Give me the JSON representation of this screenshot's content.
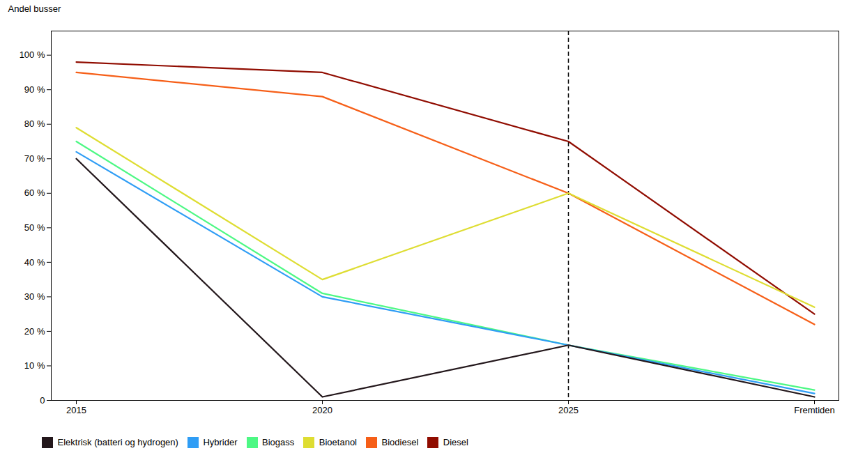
{
  "chart_data": {
    "type": "line",
    "ylabel": "Andel busser",
    "categories": [
      "2015",
      "2020",
      "2025",
      "Fremtiden"
    ],
    "series": [
      {
        "name": "Diesel",
        "values": [
          98,
          95,
          75,
          25
        ]
      },
      {
        "name": "Biodiesel",
        "values": [
          95,
          88,
          60,
          22
        ]
      },
      {
        "name": "Bioetanol",
        "values": [
          79,
          35,
          60,
          27
        ]
      },
      {
        "name": "Biogass",
        "values": [
          75,
          31,
          16,
          3
        ]
      },
      {
        "name": "Hybrider",
        "values": [
          72,
          30,
          16,
          2
        ]
      },
      {
        "name": "Elektrisk (batteri og hydrogen)",
        "values": [
          70,
          1,
          16,
          1
        ]
      }
    ],
    "vline_x": "2025",
    "ylim": [
      0,
      107
    ],
    "yticks": [
      0,
      {
        "value": 10,
        "label": "10 %"
      },
      {
        "value": 20,
        "label": "20 %"
      },
      {
        "value": 30,
        "label": "30 %"
      },
      {
        "value": 40,
        "label": "40 %"
      },
      {
        "value": 50,
        "label": "50 %"
      },
      {
        "value": 60,
        "label": "60 %"
      },
      {
        "value": 70,
        "label": "70 %"
      },
      {
        "value": 80,
        "label": "80 %"
      },
      {
        "value": 90,
        "label": "90 %"
      },
      {
        "value": 100,
        "label": "100 %"
      }
    ],
    "grid": false,
    "legend": "bottom"
  }
}
